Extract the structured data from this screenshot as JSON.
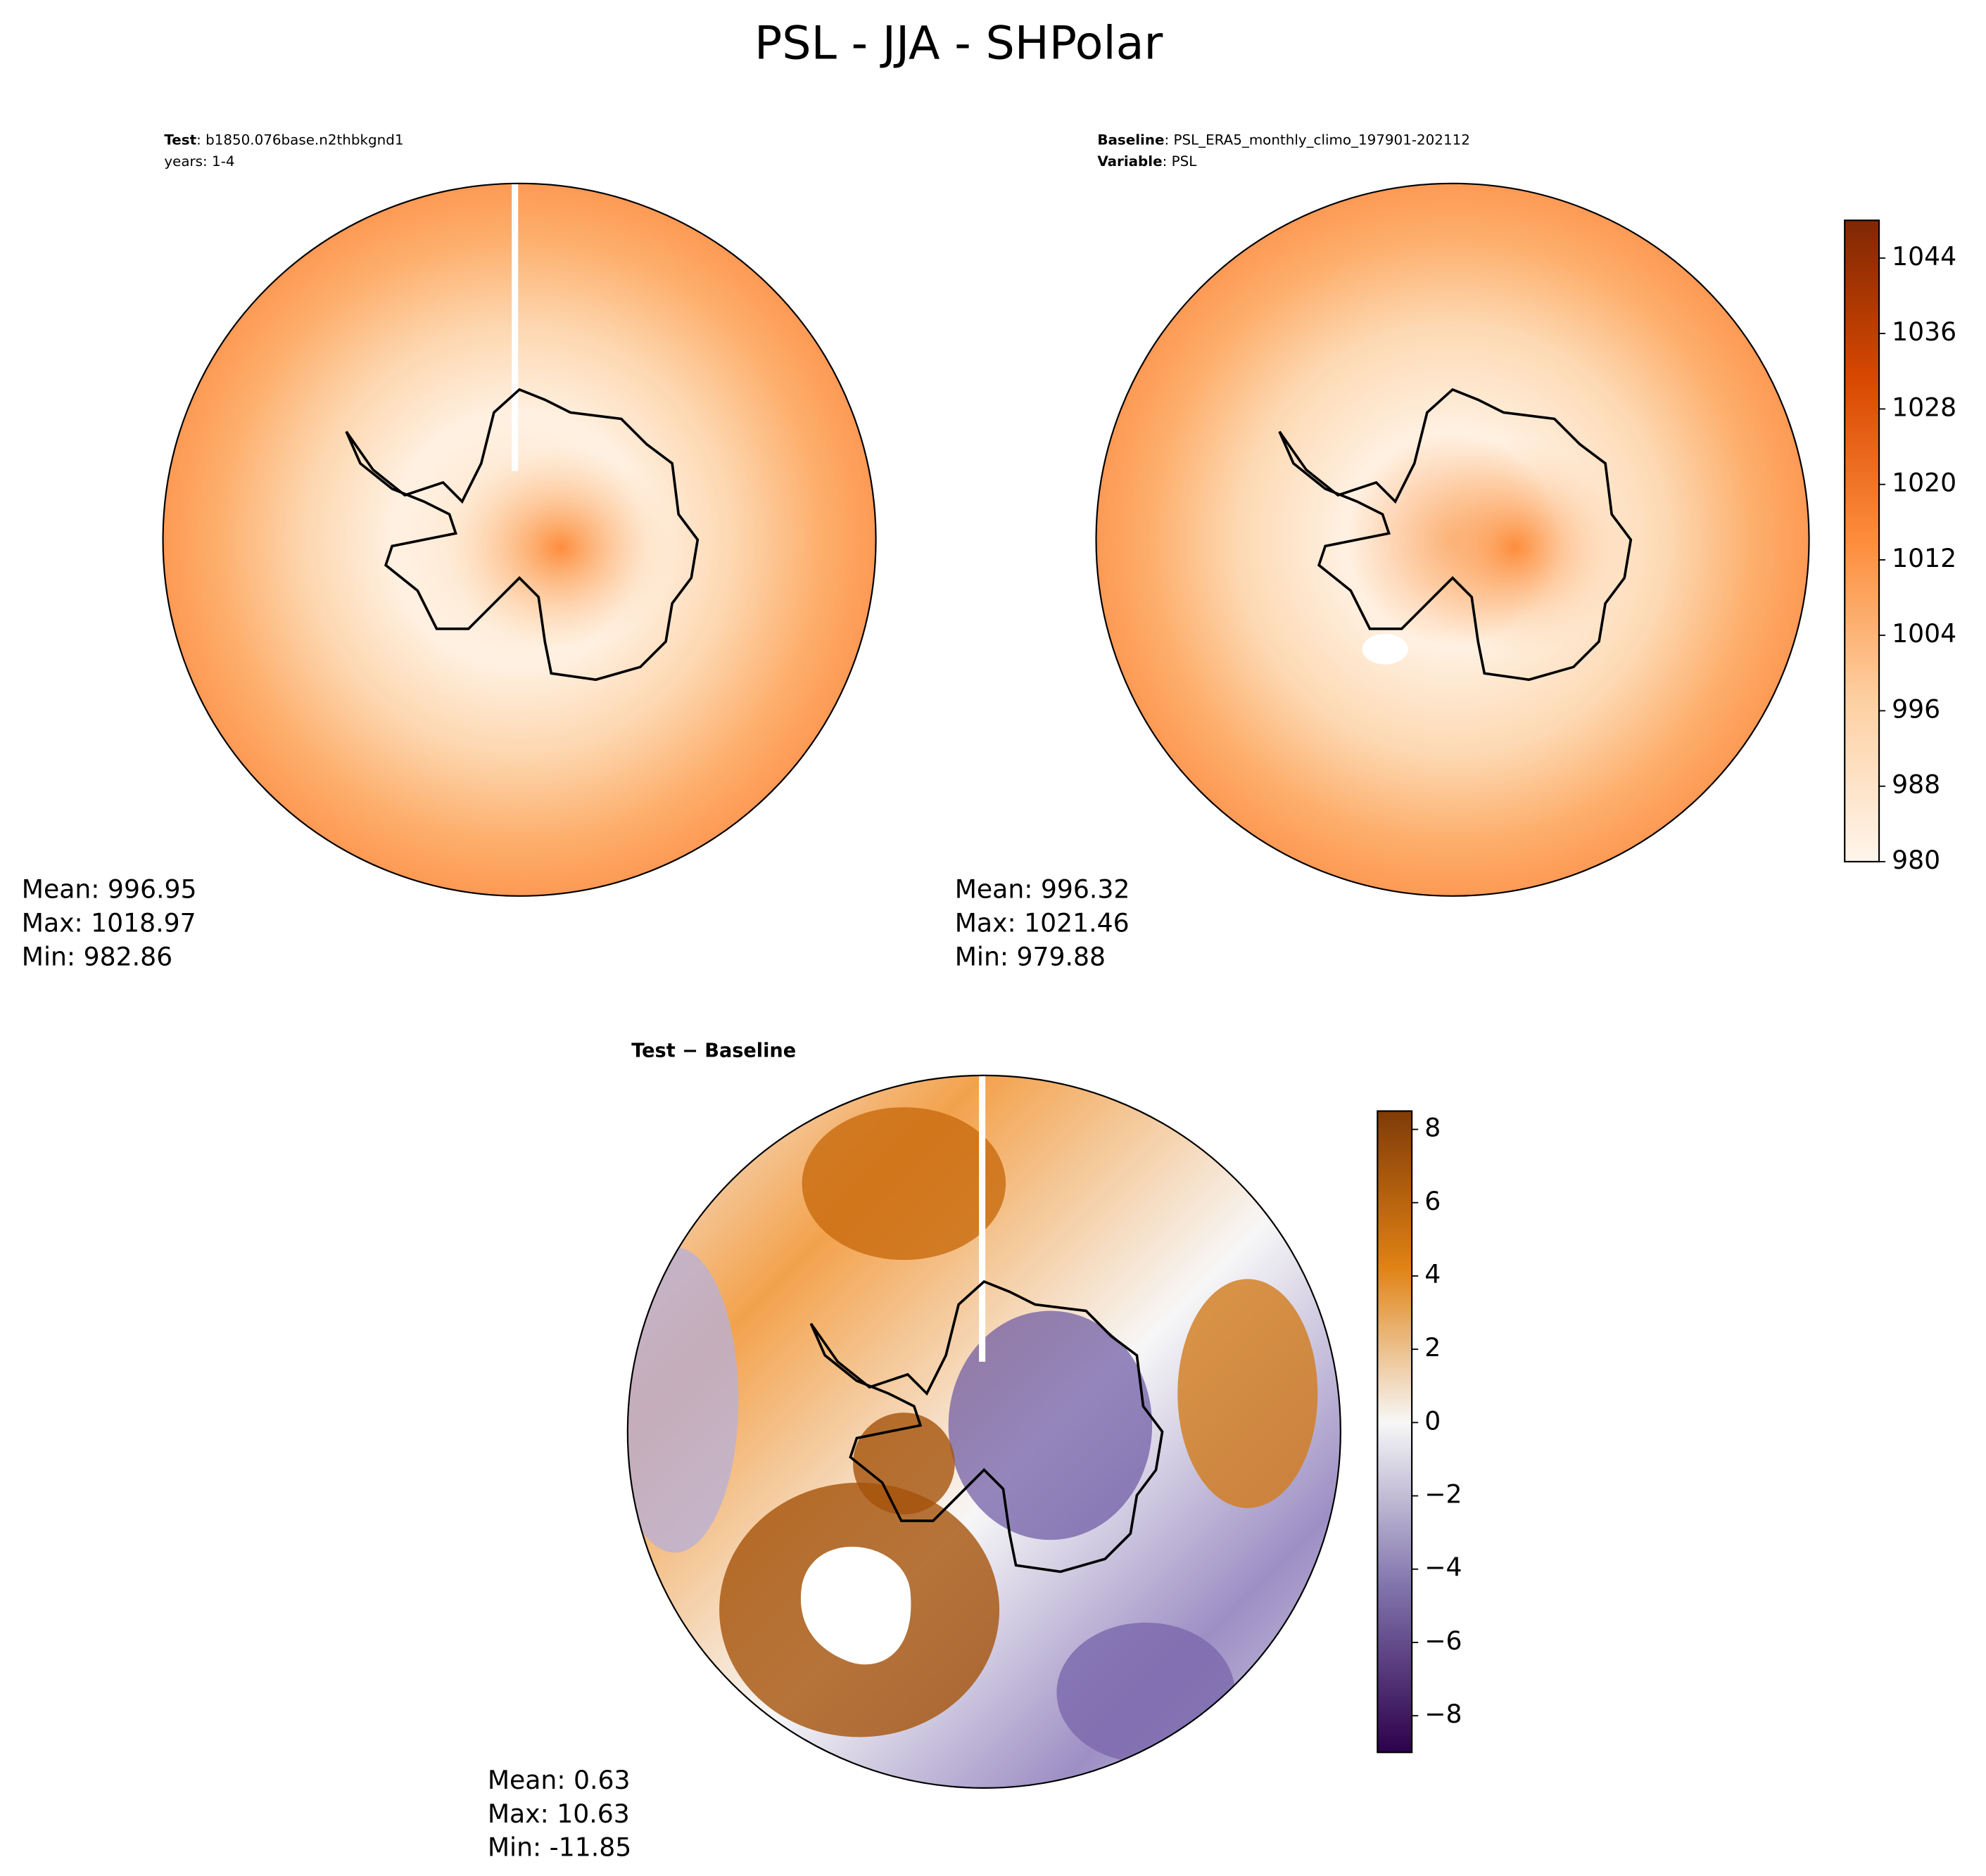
{
  "title": "PSL - JJA - SHPolar",
  "panels": [
    {
      "header": [
        {
          "label": "Test",
          "text": ": b1850.076base.n2thbkgnd1"
        },
        {
          "text": "years: 1-4"
        }
      ],
      "stats": [
        "Mean: 996.95",
        "Max: 1018.97",
        "Min: 982.86"
      ]
    },
    {
      "header": [
        {
          "label": "Baseline",
          "text": ": PSL_ERA5_monthly_climo_197901-202112"
        },
        {
          "label": "Variable",
          "text": ": PSL"
        }
      ],
      "stats": [
        "Mean: 996.32",
        "Max: 1021.46",
        "Min: 979.88"
      ]
    },
    {
      "header": [
        {
          "label": "Test − Baseline"
        }
      ],
      "stats": [
        "Mean:  0.63",
        "Max: 10.63",
        "Min: -11.85"
      ]
    }
  ],
  "colorbars": [
    {
      "lim": [
        980,
        1048
      ],
      "ticks": [
        980,
        988,
        996,
        1004,
        1012,
        1020,
        1028,
        1036,
        1044
      ],
      "colors": [
        "#fff5eb",
        "#fdd0a2",
        "#fd8d3c",
        "#d94801",
        "#7f2704"
      ]
    },
    {
      "lim": [
        -9,
        8.5
      ],
      "ticks": [
        {
          "value": -8,
          "label": "−8"
        },
        {
          "value": -6,
          "label": "−6"
        },
        {
          "value": -4,
          "label": "−4"
        },
        {
          "value": -2,
          "label": "−2"
        },
        0,
        2,
        4,
        6,
        8
      ],
      "colors": [
        "#2d004b",
        "#8073ac",
        "#f7f7f7",
        "#e08214",
        "#7f3b08"
      ]
    }
  ]
}
